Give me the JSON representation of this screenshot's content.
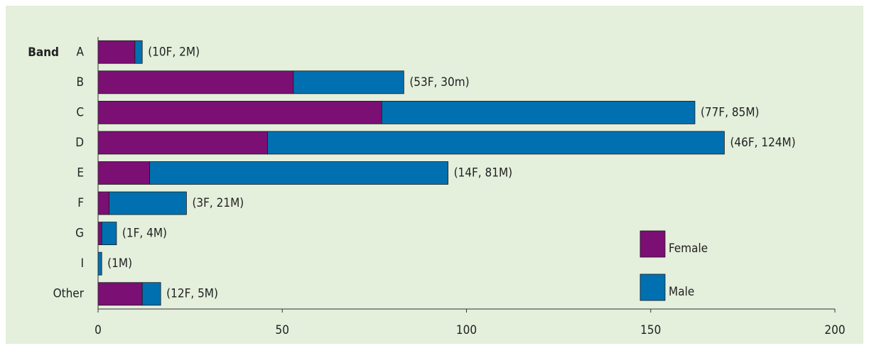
{
  "chart_data": {
    "type": "stacked-barh",
    "y_label": "Band",
    "categories": [
      "A",
      "B",
      "C",
      "D",
      "E",
      "F",
      "G",
      "I",
      "Other"
    ],
    "series": [
      {
        "name": "Female",
        "color": "#7b0f74",
        "values": [
          10,
          53,
          77,
          46,
          14,
          3,
          1,
          0,
          12
        ]
      },
      {
        "name": "Male",
        "color": "#0070b0",
        "values": [
          2,
          30,
          85,
          124,
          81,
          21,
          4,
          1,
          5
        ]
      }
    ],
    "annotations": [
      "(10F, 2M)",
      "(53F, 30m)",
      "(77F, 85M)",
      "(46F, 124M)",
      "(14F, 81M)",
      "(3F, 21M)",
      "(1F, 4M)",
      "(1M)",
      "(12F, 5M)"
    ],
    "xlim": [
      0,
      200
    ],
    "xticks": [
      0,
      50,
      100,
      150,
      200
    ],
    "legend": "lower-right"
  }
}
